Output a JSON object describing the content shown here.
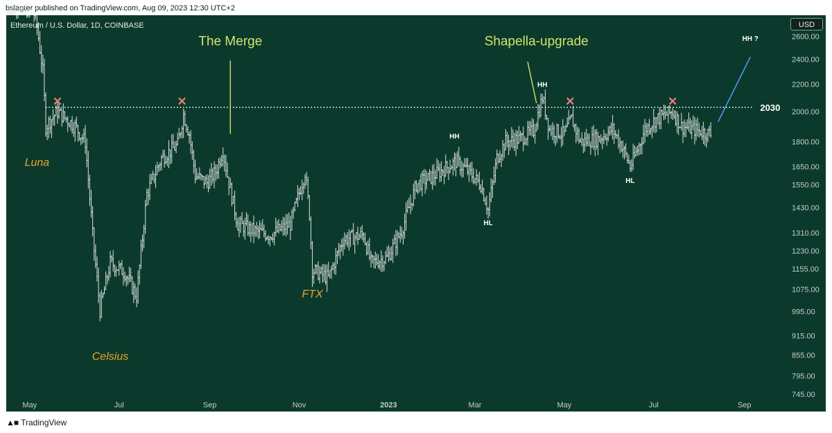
{
  "header": {
    "published_by": "bslagter published on TradingView.com, Aug 09, 2023 12:30 UTC+2"
  },
  "symbol_title": "Ethereum / U.S. Dollar, 1D, COINBASE",
  "currency": "USD",
  "footer": {
    "logo_text": "TradingView"
  },
  "colors": {
    "background": "#0b3a2d",
    "candles": "#dfe3e1",
    "annotation_yellow": "#d4e36b",
    "annotation_orange": "#f0a22a",
    "cross_red": "#f07878",
    "trend_blue": "#4a9be8",
    "axis_text": "#c7cdca"
  },
  "chart_data": {
    "type": "ohlc",
    "title": "Ethereum / U.S. Dollar, 1D, COINBASE",
    "y_scale": "log",
    "ylim": [
      740,
      2800
    ],
    "x_range": [
      "2022-04-15",
      "2023-09-30"
    ],
    "y_ticks": [
      2600,
      2400,
      2200,
      2000,
      1800,
      1650,
      1550,
      1430,
      1310,
      1230,
      1155,
      1075,
      995,
      915,
      855,
      795,
      745
    ],
    "y_tick_labels": [
      "2600.00",
      "2400.00",
      "2200.00",
      "2000.00",
      "1800.00",
      "1650.00",
      "1550.00",
      "1430.00",
      "1310.00",
      "1230.00",
      "1155.00",
      "1075.00",
      "995.00",
      "915.00",
      "855.00",
      "795.00",
      "745.00"
    ],
    "x_ticks": [
      {
        "date": "2022-05-01",
        "label": "May",
        "bold": false
      },
      {
        "date": "2022-07-01",
        "label": "Jul",
        "bold": false
      },
      {
        "date": "2022-09-01",
        "label": "Sep",
        "bold": false
      },
      {
        "date": "2022-11-01",
        "label": "Nov",
        "bold": false
      },
      {
        "date": "2023-01-01",
        "label": "2023",
        "bold": true
      },
      {
        "date": "2023-03-01",
        "label": "Mar",
        "bold": false
      },
      {
        "date": "2023-05-01",
        "label": "May",
        "bold": false
      },
      {
        "date": "2023-07-01",
        "label": "Jul",
        "bold": false
      },
      {
        "date": "2023-09-01",
        "label": "Sep",
        "bold": false
      }
    ],
    "price_path": [
      [
        "2022-04-15",
        3000
      ],
      [
        "2022-05-05",
        2800
      ],
      [
        "2022-05-10",
        2300
      ],
      [
        "2022-05-12",
        1900
      ],
      [
        "2022-05-20",
        2000
      ],
      [
        "2022-06-01",
        1900
      ],
      [
        "2022-06-08",
        1800
      ],
      [
        "2022-06-13",
        1300
      ],
      [
        "2022-06-18",
        1000
      ],
      [
        "2022-06-25",
        1180
      ],
      [
        "2022-07-05",
        1140
      ],
      [
        "2022-07-13",
        1050
      ],
      [
        "2022-07-20",
        1500
      ],
      [
        "2022-07-30",
        1700
      ],
      [
        "2022-08-10",
        1780
      ],
      [
        "2022-08-14",
        1980
      ],
      [
        "2022-08-18",
        1850
      ],
      [
        "2022-08-22",
        1600
      ],
      [
        "2022-08-30",
        1560
      ],
      [
        "2022-09-05",
        1620
      ],
      [
        "2022-09-10",
        1750
      ],
      [
        "2022-09-13",
        1600
      ],
      [
        "2022-09-20",
        1350
      ],
      [
        "2022-10-01",
        1320
      ],
      [
        "2022-10-12",
        1300
      ],
      [
        "2022-10-26",
        1350
      ],
      [
        "2022-11-05",
        1620
      ],
      [
        "2022-11-08",
        1400
      ],
      [
        "2022-11-10",
        1150
      ],
      [
        "2022-11-21",
        1120
      ],
      [
        "2022-12-01",
        1280
      ],
      [
        "2022-12-15",
        1300
      ],
      [
        "2022-12-20",
        1180
      ],
      [
        "2022-12-31",
        1200
      ],
      [
        "2023-01-10",
        1320
      ],
      [
        "2023-01-20",
        1550
      ],
      [
        "2023-02-01",
        1600
      ],
      [
        "2023-02-16",
        1680
      ],
      [
        "2023-02-25",
        1620
      ],
      [
        "2023-03-05",
        1550
      ],
      [
        "2023-03-10",
        1420
      ],
      [
        "2023-03-16",
        1700
      ],
      [
        "2023-03-22",
        1800
      ],
      [
        "2023-04-01",
        1820
      ],
      [
        "2023-04-10",
        1870
      ],
      [
        "2023-04-16",
        2100
      ],
      [
        "2023-04-21",
        1880
      ],
      [
        "2023-05-01",
        1850
      ],
      [
        "2023-05-06",
        1950
      ],
      [
        "2023-05-12",
        1800
      ],
      [
        "2023-05-25",
        1820
      ],
      [
        "2023-06-03",
        1880
      ],
      [
        "2023-06-10",
        1760
      ],
      [
        "2023-06-15",
        1650
      ],
      [
        "2023-06-20",
        1750
      ],
      [
        "2023-06-25",
        1880
      ],
      [
        "2023-07-03",
        1950
      ],
      [
        "2023-07-14",
        2000
      ],
      [
        "2023-07-20",
        1900
      ],
      [
        "2023-08-01",
        1870
      ],
      [
        "2023-08-09",
        1850
      ]
    ],
    "resistance_line": {
      "value": 2030,
      "label": "2030",
      "from": "2022-05-12",
      "to": "2023-09-07"
    },
    "resistance_touches": [
      {
        "date": "2022-05-20",
        "value": 2030
      },
      {
        "date": "2022-08-13",
        "value": 2030
      },
      {
        "date": "2023-05-05",
        "value": 2030
      },
      {
        "date": "2023-07-14",
        "value": 2030
      }
    ],
    "projection_line": {
      "from": [
        "2023-08-14",
        1930
      ],
      "to": [
        "2023-09-05",
        2420
      ]
    },
    "annotations": [
      {
        "text": "Luna",
        "date": "2022-05-06",
        "value": 1655,
        "style": "orange-italic"
      },
      {
        "text": "Celsius",
        "date": "2022-06-25",
        "value": 840,
        "style": "orange-italic"
      },
      {
        "text": "FTX",
        "date": "2022-11-10",
        "value": 1045,
        "style": "orange-italic"
      },
      {
        "text": "The Merge",
        "date": "2022-09-15",
        "value": 2520,
        "style": "yellow"
      },
      {
        "text": "Shapella-upgrade",
        "date": "2023-04-12",
        "value": 2520,
        "style": "yellow"
      },
      {
        "text": "HH",
        "date": "2023-02-15",
        "value": 1820,
        "style": "white-bold"
      },
      {
        "text": "HL",
        "date": "2023-03-10",
        "value": 1345,
        "style": "white-bold"
      },
      {
        "text": "HH",
        "date": "2023-04-16",
        "value": 2180,
        "style": "white-bold"
      },
      {
        "text": "HL",
        "date": "2023-06-15",
        "value": 1560,
        "style": "white-bold"
      },
      {
        "text": "HH ?",
        "date": "2023-09-05",
        "value": 2560,
        "style": "white-bold"
      }
    ],
    "event_pointers": [
      {
        "name": "merge",
        "from": [
          "2022-09-15",
          2390
        ],
        "to": [
          "2022-09-15",
          1850
        ]
      },
      {
        "name": "shapella",
        "from": [
          "2023-04-06",
          2380
        ],
        "to": [
          "2023-04-12",
          2060
        ]
      }
    ]
  }
}
